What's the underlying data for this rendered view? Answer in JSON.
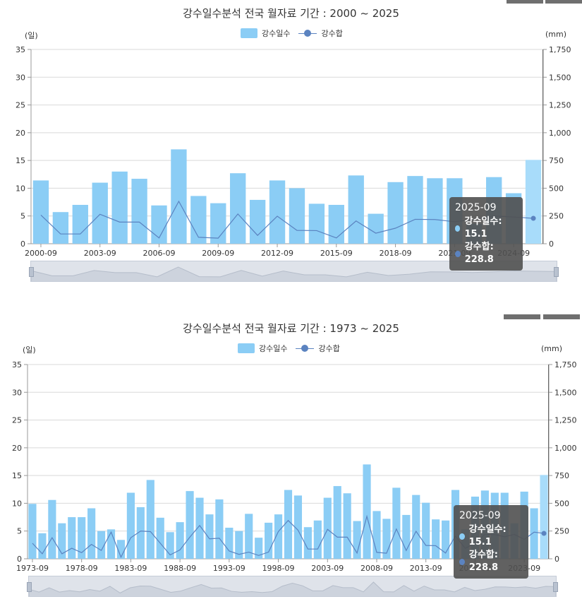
{
  "colors": {
    "bar": "#8bcdf5",
    "bar_highlight": "#a8dcfa",
    "line": "#5b83c0",
    "grid": "#d9d9d9",
    "navigator": "#dfe3ea"
  },
  "legend": {
    "days": "강수일수",
    "sum": "강수합"
  },
  "panels": [
    {
      "title": "강수일수분석 전국 월자료 기간 : 2000 ~ 2025",
      "left_unit": "(일)",
      "right_unit": "(mm)",
      "left_ticks": [
        "0",
        "5",
        "10",
        "15",
        "20",
        "25",
        "30",
        "35"
      ],
      "right_ticks": [
        "0",
        "250",
        "500",
        "750",
        "1,000",
        "1,250",
        "1,500",
        "1,750"
      ],
      "x_ticks": [
        "2000-09",
        "2003-09",
        "2006-09",
        "2009-09",
        "2012-09",
        "2015-09",
        "2018-09",
        "2021-09",
        "2024-09"
      ],
      "tooltip": {
        "date": "2025-09",
        "days_label": "강수일수: 15.1",
        "sum_label": "강수합: 228.8"
      }
    },
    {
      "title": "강수일수분석 전국 월자료 기간 : 1973 ~ 2025",
      "left_unit": "(일)",
      "right_unit": "(mm)",
      "left_ticks": [
        "0",
        "5",
        "10",
        "15",
        "20",
        "25",
        "30",
        "35"
      ],
      "right_ticks": [
        "0",
        "250",
        "500",
        "750",
        "1,000",
        "1,250",
        "1,500",
        "1,750"
      ],
      "x_ticks": [
        "1973-09",
        "1978-09",
        "1983-09",
        "1988-09",
        "1993-09",
        "1998-09",
        "2003-09",
        "2008-09",
        "2013-09",
        "2018-09",
        "2023-09"
      ],
      "tooltip": {
        "date": "2025-09",
        "days_label": "강수일수: 15.1",
        "sum_label": "강수합: 228.8"
      }
    }
  ],
  "chart_data": [
    {
      "type": "bar",
      "title": "강수일수분석 전국 월자료 기간 : 2000 ~ 2025",
      "x": [
        "2000-09",
        "2001-09",
        "2002-09",
        "2003-09",
        "2004-09",
        "2005-09",
        "2006-09",
        "2007-09",
        "2008-09",
        "2009-09",
        "2010-09",
        "2011-09",
        "2012-09",
        "2013-09",
        "2014-09",
        "2015-09",
        "2016-09",
        "2017-09",
        "2018-09",
        "2019-09",
        "2020-09",
        "2021-09",
        "2022-09",
        "2023-09",
        "2024-09",
        "2025-09"
      ],
      "series": [
        {
          "name": "강수일수",
          "type": "bar",
          "axis": "left",
          "values": [
            11.4,
            5.7,
            7.0,
            11.0,
            13.0,
            11.7,
            6.9,
            17.0,
            8.6,
            7.3,
            12.7,
            7.9,
            11.4,
            10.0,
            7.2,
            7.0,
            12.3,
            5.4,
            11.1,
            12.2,
            11.8,
            11.8,
            3.6,
            12.0,
            9.1,
            15.1
          ]
        },
        {
          "name": "강수합",
          "type": "line",
          "axis": "right",
          "values": [
            258,
            88,
            88,
            265,
            195,
            195,
            52,
            382,
            58,
            50,
            268,
            75,
            248,
            120,
            118,
            52,
            205,
            95,
            140,
            220,
            218,
            198,
            220,
            250,
            240,
            228.8
          ]
        }
      ],
      "ylim_left": [
        0,
        35
      ],
      "ylim_right": [
        0,
        1750
      ],
      "grid": true,
      "legend": "top-center"
    },
    {
      "type": "bar",
      "title": "강수일수분석 전국 월자료 기간 : 1973 ~ 2025",
      "x": [
        "1973-09",
        "1974-09",
        "1975-09",
        "1976-09",
        "1977-09",
        "1978-09",
        "1979-09",
        "1980-09",
        "1981-09",
        "1982-09",
        "1983-09",
        "1984-09",
        "1985-09",
        "1986-09",
        "1987-09",
        "1988-09",
        "1989-09",
        "1990-09",
        "1991-09",
        "1992-09",
        "1993-09",
        "1994-09",
        "1995-09",
        "1996-09",
        "1997-09",
        "1998-09",
        "1999-09",
        "2000-09",
        "2001-09",
        "2002-09",
        "2003-09",
        "2004-09",
        "2005-09",
        "2006-09",
        "2007-09",
        "2008-09",
        "2009-09",
        "2010-09",
        "2011-09",
        "2012-09",
        "2013-09",
        "2014-09",
        "2015-09",
        "2016-09",
        "2017-09",
        "2018-09",
        "2019-09",
        "2020-09",
        "2021-09",
        "2022-09",
        "2023-09",
        "2024-09",
        "2025-09"
      ],
      "series": [
        {
          "name": "강수일수",
          "type": "bar",
          "axis": "left",
          "values": [
            9.9,
            4.6,
            10.6,
            6.4,
            7.5,
            7.5,
            9.1,
            5.0,
            5.3,
            3.4,
            11.9,
            9.3,
            14.2,
            7.4,
            4.8,
            6.6,
            12.2,
            11.0,
            8.0,
            10.7,
            5.6,
            5.0,
            8.1,
            3.8,
            6.5,
            8.0,
            12.4,
            11.4,
            5.7,
            6.9,
            11.0,
            13.1,
            11.8,
            6.8,
            17.0,
            8.6,
            7.2,
            12.8,
            7.9,
            11.5,
            10.1,
            7.1,
            6.9,
            12.4,
            5.3,
            11.2,
            12.3,
            11.9,
            11.9,
            6.4,
            12.1,
            9.1,
            15.1
          ]
        },
        {
          "name": "강수합",
          "type": "line",
          "axis": "right",
          "values": [
            140,
            45,
            190,
            45,
            95,
            55,
            130,
            75,
            240,
            15,
            190,
            250,
            245,
            140,
            35,
            80,
            195,
            300,
            180,
            185,
            70,
            40,
            60,
            30,
            60,
            245,
            345,
            258,
            88,
            88,
            265,
            195,
            195,
            52,
            382,
            58,
            50,
            268,
            75,
            248,
            120,
            118,
            52,
            205,
            95,
            140,
            220,
            218,
            198,
            220,
            175,
            240,
            228.8
          ]
        }
      ],
      "ylim_left": [
        0,
        35
      ],
      "ylim_right": [
        0,
        1750
      ],
      "grid": true,
      "legend": "top-center"
    }
  ]
}
